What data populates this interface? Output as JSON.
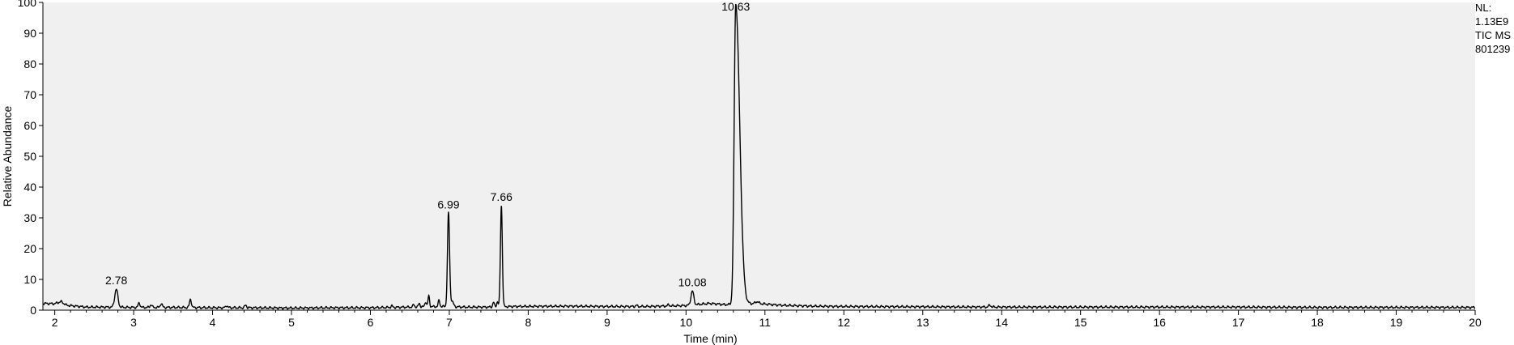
{
  "chart_data": {
    "type": "line",
    "title": "",
    "xlabel": "Time (min)",
    "ylabel": "Relative Abundance",
    "xlim": [
      1.85,
      20
    ],
    "ylim": [
      0,
      100
    ],
    "x_ticks": [
      2,
      3,
      4,
      5,
      6,
      7,
      8,
      9,
      10,
      11,
      12,
      13,
      14,
      15,
      16,
      17,
      18,
      19,
      20
    ],
    "y_ticks": [
      0,
      10,
      20,
      30,
      40,
      50,
      60,
      70,
      80,
      90,
      100
    ],
    "grid": false,
    "background": "#f0f0f0",
    "line_color": "#000000",
    "baseline": [
      [
        1.85,
        2.2
      ],
      [
        2.0,
        2.1
      ],
      [
        2.08,
        2.8
      ],
      [
        2.15,
        1.6
      ],
      [
        2.4,
        1.0
      ],
      [
        2.6,
        1.0
      ],
      [
        3.0,
        0.9
      ],
      [
        3.5,
        0.9
      ],
      [
        4.0,
        0.8
      ],
      [
        4.5,
        0.8
      ],
      [
        5.0,
        0.7
      ],
      [
        5.5,
        0.8
      ],
      [
        6.0,
        0.8
      ],
      [
        6.5,
        1.0
      ],
      [
        6.9,
        1.2
      ],
      [
        7.2,
        1.0
      ],
      [
        7.5,
        1.0
      ],
      [
        7.8,
        1.2
      ],
      [
        8.5,
        1.3
      ],
      [
        9.0,
        1.2
      ],
      [
        9.5,
        1.2
      ],
      [
        10.0,
        1.5
      ],
      [
        10.3,
        2.2
      ],
      [
        10.5,
        1.8
      ],
      [
        10.9,
        2.2
      ],
      [
        11.2,
        1.6
      ],
      [
        11.6,
        1.3
      ],
      [
        12.0,
        1.2
      ],
      [
        13.0,
        1.1
      ],
      [
        14.0,
        1.0
      ],
      [
        15.0,
        1.0
      ],
      [
        16.0,
        1.0
      ],
      [
        17.0,
        1.0
      ],
      [
        18.0,
        0.9
      ],
      [
        19.0,
        0.9
      ],
      [
        20.0,
        0.9
      ]
    ],
    "peaks": [
      {
        "rt": 2.78,
        "height": 6.8,
        "width": 0.02,
        "label": "2.78"
      },
      {
        "rt": 3.07,
        "height": 2.4,
        "width": 0.012
      },
      {
        "rt": 3.22,
        "height": 1.8,
        "width": 0.012
      },
      {
        "rt": 3.35,
        "height": 2.2,
        "width": 0.012
      },
      {
        "rt": 3.72,
        "height": 3.6,
        "width": 0.012
      },
      {
        "rt": 4.18,
        "height": 1.5,
        "width": 0.012
      },
      {
        "rt": 4.42,
        "height": 1.6,
        "width": 0.012
      },
      {
        "rt": 6.27,
        "height": 1.4,
        "width": 0.01
      },
      {
        "rt": 6.55,
        "height": 1.8,
        "width": 0.01
      },
      {
        "rt": 6.62,
        "height": 2.2,
        "width": 0.01
      },
      {
        "rt": 6.7,
        "height": 2.8,
        "width": 0.01
      },
      {
        "rt": 6.74,
        "height": 4.6,
        "width": 0.01
      },
      {
        "rt": 6.87,
        "height": 3.2,
        "width": 0.01
      },
      {
        "rt": 6.99,
        "height": 31.5,
        "width": 0.013,
        "label": "6.99"
      },
      {
        "rt": 7.03,
        "height": 3.0,
        "width": 0.02
      },
      {
        "rt": 7.56,
        "height": 2.6,
        "width": 0.01
      },
      {
        "rt": 7.61,
        "height": 2.8,
        "width": 0.01
      },
      {
        "rt": 7.66,
        "height": 34.0,
        "width": 0.012,
        "label": "7.66"
      },
      {
        "rt": 9.37,
        "height": 1.6,
        "width": 0.01
      },
      {
        "rt": 9.78,
        "height": 1.8,
        "width": 0.01
      },
      {
        "rt": 10.08,
        "height": 6.2,
        "width": 0.018,
        "label": "10.08"
      },
      {
        "rt": 10.63,
        "height": 99.5,
        "width": 0.02,
        "tail": 0.05,
        "label": "10.63"
      },
      {
        "rt": 10.9,
        "height": 2.8,
        "width": 0.02
      },
      {
        "rt": 13.85,
        "height": 1.6,
        "width": 0.015
      }
    ]
  },
  "info": {
    "nl_label": "NL:",
    "nl_value": "1.13E9",
    "trace": "TIC  MS",
    "file": "801239"
  }
}
